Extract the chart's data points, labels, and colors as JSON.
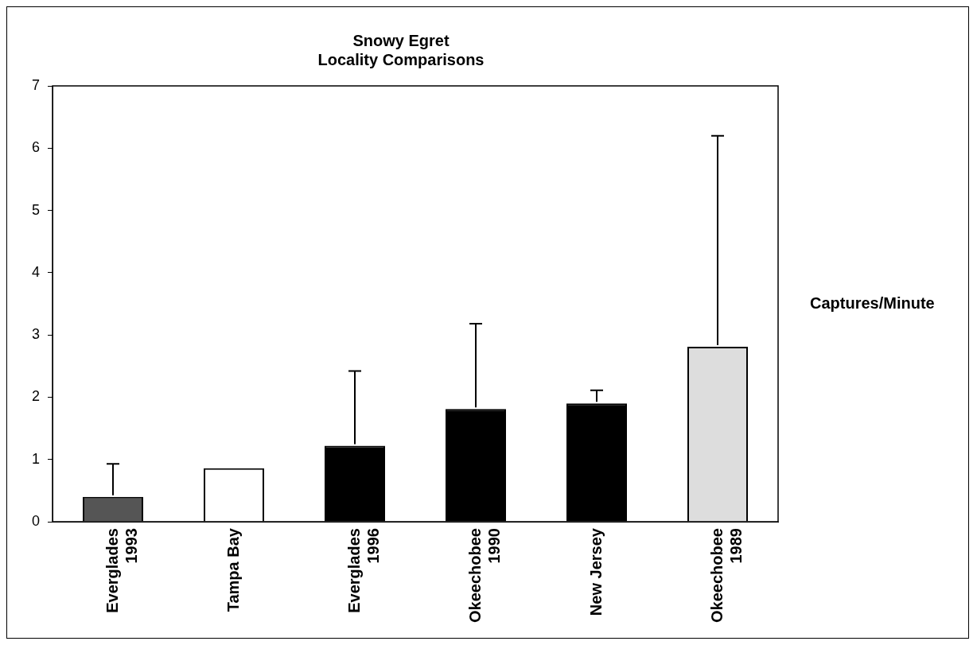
{
  "chart_data": {
    "type": "bar",
    "title": "Snowy Egret\nLocality Comparisons",
    "ylabel": "Captures/Minute",
    "categories": [
      "Everglades\n1993",
      "Tampa Bay",
      "Everglades\n1996",
      "Okeechobee\n1990",
      "New Jersey",
      "Okeechobee\n1989"
    ],
    "values": [
      0.4,
      0.86,
      1.22,
      1.81,
      1.9,
      2.81
    ],
    "colors": [
      "#555555",
      "#ffffff",
      "#000000",
      "#000000",
      "#000000",
      "#dddddd"
    ],
    "errors": [
      [
        0.4,
        0.93
      ],
      null,
      [
        1.22,
        2.42
      ],
      [
        1.81,
        3.18
      ],
      [
        1.9,
        2.11
      ],
      [
        2.81,
        6.2
      ]
    ],
    "ylim": [
      0,
      7
    ],
    "yticks": [
      0,
      1,
      2,
      3,
      4,
      5,
      6,
      7
    ],
    "grid": false,
    "legend": false
  }
}
